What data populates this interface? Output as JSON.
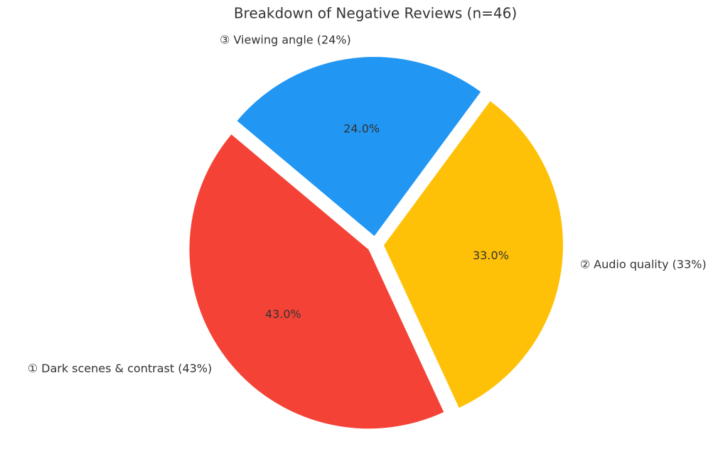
{
  "chart_data": {
    "type": "pie",
    "title": "Breakdown of Negative Reviews (n=46)",
    "categories": [
      "① Dark scenes & contrast (43%)",
      "② Audio quality (33%)",
      "③ Viewing angle (24%)"
    ],
    "values": [
      43,
      33,
      24
    ],
    "value_labels": [
      "43.0%",
      "33.0%",
      "24.0%"
    ],
    "colors": [
      "#f44336",
      "#ffc107",
      "#2196f3"
    ]
  }
}
